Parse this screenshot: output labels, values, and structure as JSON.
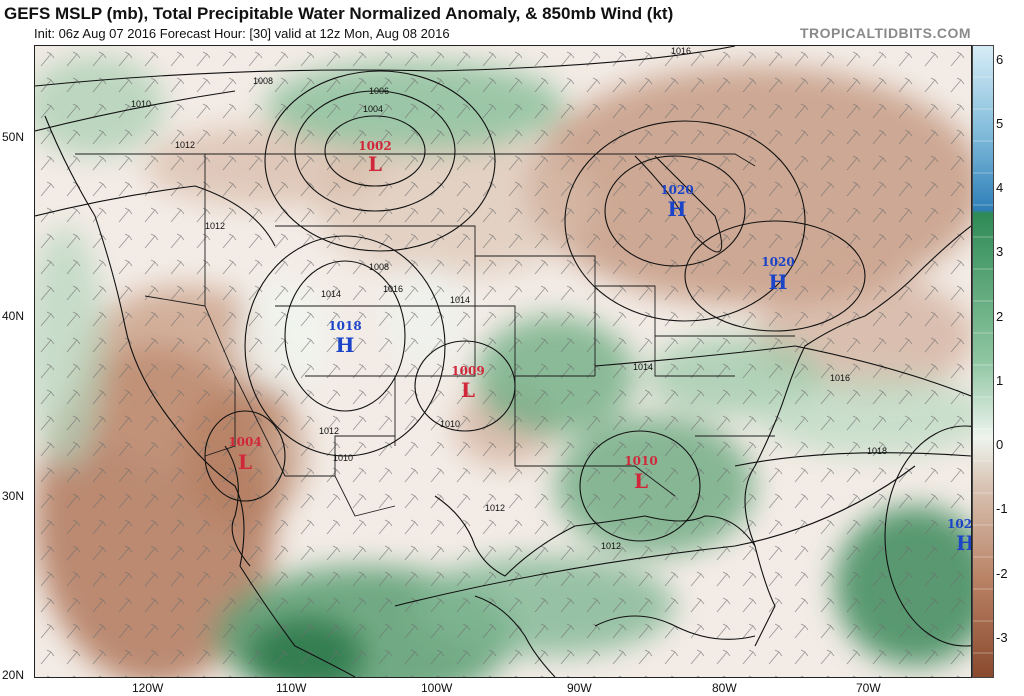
{
  "header": {
    "title": "GEFS MSLP (mb), Total Precipitable Water Normalized Anomaly, & 850mb Wind (kt)",
    "subtitle": "Init: 06z Aug 07 2016   Forecast Hour: [30]   valid at 12z Mon, Aug 08 2016",
    "brand": "TROPICALTIDBITS.COM"
  },
  "axes": {
    "latitudes": [
      "50N",
      "40N",
      "30N",
      "20N"
    ],
    "longitudes": [
      "120W",
      "110W",
      "100W",
      "90W",
      "80W",
      "70W"
    ]
  },
  "colorbar": {
    "labels": [
      "6",
      "5",
      "4",
      "3",
      "2",
      "1",
      "0",
      "-1",
      "-2",
      "-3"
    ],
    "neg_color": "#9a5a3c",
    "pos_color": "#2f8a55",
    "blue_color": "#2e7fb8"
  },
  "pressure_centers": [
    {
      "type": "L",
      "value": "1002",
      "color": "#d0283a"
    },
    {
      "type": "H",
      "value": "1020",
      "color": "#1c44c8"
    },
    {
      "type": "H",
      "value": "1020",
      "color": "#1c44c8"
    },
    {
      "type": "H",
      "value": "1018",
      "color": "#1c44c8"
    },
    {
      "type": "L",
      "value": "1009",
      "color": "#d0283a"
    },
    {
      "type": "L",
      "value": "1004",
      "color": "#d0283a"
    },
    {
      "type": "L",
      "value": "1010",
      "color": "#d0283a"
    },
    {
      "type": "H",
      "value": "102",
      "color": "#1c44c8"
    }
  ],
  "isobar_labels": [
    "1016",
    "1008",
    "1006",
    "1004",
    "1010",
    "1012",
    "1012",
    "1008",
    "1014",
    "1016",
    "1014",
    "1014",
    "1016",
    "1012",
    "1010",
    "1010",
    "1012",
    "1018",
    "1012"
  ]
}
